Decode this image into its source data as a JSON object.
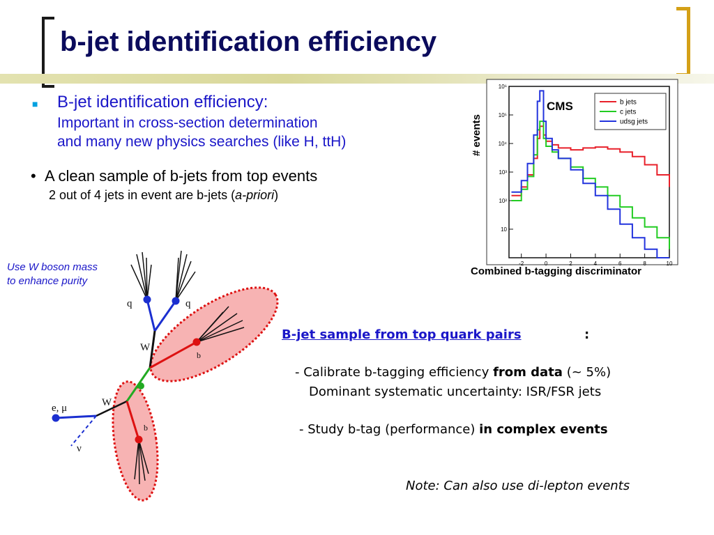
{
  "title": "b-jet identification efficiency",
  "bullet1": {
    "heading": "B-jet identification efficiency:",
    "line1": "Important in cross-section determination",
    "line2": "and many new physics searches (like H, ttH)"
  },
  "bullet2": {
    "heading": "A clean sample of b-jets from top events",
    "sub_prefix": "2 out of 4 jets in event are b-jets (",
    "sub_italic": "a-priori",
    "sub_suffix": ")"
  },
  "diagram": {
    "note_line1": "Use W boson mass",
    "note_line2": "to enhance purity",
    "labels": {
      "q1": "q",
      "q2": "q",
      "w_top": "W",
      "b_top": "b",
      "lepton": "e, μ",
      "w_bottom": "W",
      "b_bottom": "b",
      "nu": "ν"
    }
  },
  "plot": {
    "caption": "Combined b-tagging discriminator",
    "ylabel": "# events",
    "cms_label": "CMS"
  },
  "chart_data": {
    "type": "line",
    "title": "",
    "xlabel": "Combined b-tagging discriminator",
    "ylabel": "# events",
    "xlim": [
      -3,
      10
    ],
    "ylim": [
      1,
      1000000
    ],
    "yscale": "log",
    "x_ticks": [
      "-2",
      "0",
      "2",
      "4",
      "6",
      "8",
      "10"
    ],
    "y_ticks": [
      "10",
      "10²",
      "10³",
      "10⁴",
      "10⁵",
      "10⁶"
    ],
    "legend_position": "top-right",
    "series": [
      {
        "name": "b jets",
        "color": "#e8202a",
        "x": [
          -2.8,
          -2.0,
          -1.5,
          -1.0,
          -0.7,
          -0.5,
          -0.2,
          0,
          0.5,
          1,
          2,
          3,
          4,
          5,
          6,
          7,
          8,
          9,
          10
        ],
        "y": [
          150,
          300,
          800,
          3000,
          15000,
          40000,
          20000,
          12000,
          9000,
          7000,
          6000,
          7000,
          7500,
          6500,
          5000,
          3500,
          1800,
          800,
          300
        ]
      },
      {
        "name": "c jets",
        "color": "#22cc22",
        "x": [
          -2.8,
          -2.0,
          -1.5,
          -1.0,
          -0.7,
          -0.5,
          -0.2,
          0,
          0.5,
          1,
          2,
          3,
          4,
          5,
          6,
          7,
          8,
          9,
          10
        ],
        "y": [
          100,
          250,
          700,
          4000,
          30000,
          60000,
          15000,
          8000,
          5000,
          3000,
          1500,
          600,
          300,
          150,
          60,
          25,
          12,
          5,
          2
        ]
      },
      {
        "name": "udsg jets",
        "color": "#2233dd",
        "x": [
          -2.8,
          -2.0,
          -1.5,
          -1.0,
          -0.7,
          -0.5,
          -0.2,
          0,
          0.5,
          1,
          2,
          3,
          4,
          5,
          6,
          7,
          8,
          9,
          10
        ],
        "y": [
          200,
          500,
          2000,
          20000,
          300000,
          700000,
          60000,
          15000,
          6000,
          3000,
          1200,
          400,
          150,
          50,
          15,
          5,
          2,
          1,
          1
        ]
      }
    ]
  },
  "right_text": {
    "heading": "B-jet sample from top quark pairs",
    "heading_colon": ":",
    "line1_prefix": "- Calibrate b-tagging efficiency ",
    "line1_bold": "from data",
    "line1_suffix": " (~ 5%)",
    "line2": "Dominant systematic uncertainty: ISR/FSR jets",
    "line3_prefix": "- Study b-tag (performance) ",
    "line3_bold": "in complex events",
    "note": "Note: Can also use di-lepton events"
  },
  "colors": {
    "title": "#0b0b5c",
    "text_blue": "#1a16c8",
    "bracket_right": "#d4a017"
  }
}
